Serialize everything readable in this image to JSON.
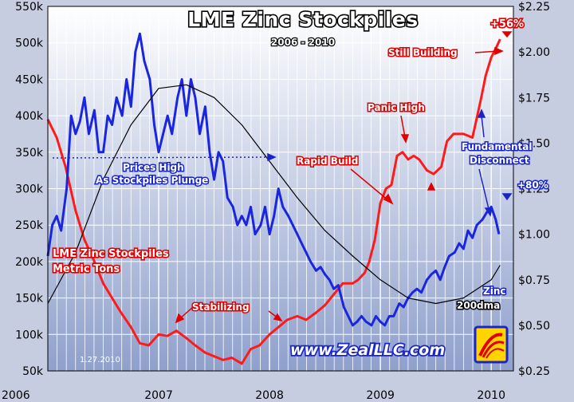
{
  "chart_data": {
    "type": "line",
    "title": "LME Zinc Stockpiles",
    "subtitle": "2006 - 2010",
    "x_ticks": [
      "2006",
      "2007",
      "2008",
      "2009",
      "2010"
    ],
    "y_left_ticks": [
      "50k",
      "100k",
      "150k",
      "200k",
      "250k",
      "300k",
      "350k",
      "400k",
      "450k",
      "500k",
      "550k"
    ],
    "y_right_ticks": [
      "$0.25",
      "$0.50",
      "$0.75",
      "$1.00",
      "$1.25",
      "$1.50",
      "$1.75",
      "$2.00",
      "$2.25"
    ],
    "y_left_range": [
      50000,
      550000
    ],
    "y_right_range": [
      0.25,
      2.25
    ],
    "x_range": [
      2006.0,
      2010.2
    ],
    "grid": true,
    "series": [
      {
        "name": "LME Zinc Stockpiles Metric Tons",
        "axis": "left",
        "color": "#ff1a1a",
        "x": [
          2006.0,
          2006.08,
          2006.16,
          2006.25,
          2006.33,
          2006.42,
          2006.5,
          2006.58,
          2006.66,
          2006.75,
          2006.83,
          2006.91,
          2007.0,
          2007.08,
          2007.16,
          2007.25,
          2007.33,
          2007.42,
          2007.5,
          2007.58,
          2007.66,
          2007.75,
          2007.83,
          2007.91,
          2008.0,
          2008.08,
          2008.16,
          2008.25,
          2008.33,
          2008.42,
          2008.5,
          2008.58,
          2008.66,
          2008.75,
          2008.8,
          2008.86,
          2008.9,
          2008.95,
          2009.0,
          2009.05,
          2009.1,
          2009.15,
          2009.2,
          2009.25,
          2009.3,
          2009.35,
          2009.42,
          2009.48,
          2009.55,
          2009.6,
          2009.66,
          2009.75,
          2009.83,
          2009.86,
          2009.91,
          2009.95,
          2010.0,
          2010.05,
          2010.08
        ],
        "values": [
          395000,
          370000,
          330000,
          270000,
          230000,
          200000,
          170000,
          150000,
          130000,
          110000,
          88000,
          85000,
          100000,
          98000,
          105000,
          95000,
          85000,
          75000,
          70000,
          65000,
          68000,
          60000,
          80000,
          85000,
          100000,
          110000,
          120000,
          125000,
          120000,
          130000,
          140000,
          155000,
          170000,
          170000,
          175000,
          185000,
          200000,
          230000,
          280000,
          300000,
          305000,
          345000,
          350000,
          340000,
          345000,
          340000,
          325000,
          320000,
          330000,
          365000,
          375000,
          375000,
          370000,
          390000,
          425000,
          455000,
          480000,
          495000,
          505000
        ]
      },
      {
        "name": "Zinc",
        "axis": "right",
        "color": "#1a25e0",
        "x": [
          2006.0,
          2006.04,
          2006.08,
          2006.12,
          2006.17,
          2006.21,
          2006.25,
          2006.29,
          2006.33,
          2006.37,
          2006.42,
          2006.46,
          2006.5,
          2006.54,
          2006.58,
          2006.62,
          2006.67,
          2006.71,
          2006.75,
          2006.79,
          2006.83,
          2006.87,
          2006.92,
          2006.96,
          2007.0,
          2007.04,
          2007.08,
          2007.12,
          2007.17,
          2007.21,
          2007.25,
          2007.29,
          2007.33,
          2007.37,
          2007.42,
          2007.46,
          2007.5,
          2007.54,
          2007.58,
          2007.62,
          2007.67,
          2007.71,
          2007.75,
          2007.79,
          2007.83,
          2007.87,
          2007.92,
          2007.96,
          2008.0,
          2008.04,
          2008.08,
          2008.12,
          2008.17,
          2008.21,
          2008.25,
          2008.29,
          2008.33,
          2008.37,
          2008.42,
          2008.46,
          2008.5,
          2008.54,
          2008.58,
          2008.62,
          2008.67,
          2008.71,
          2008.75,
          2008.79,
          2008.83,
          2008.87,
          2008.92,
          2008.96,
          2009.0,
          2009.04,
          2009.08,
          2009.12,
          2009.17,
          2009.21,
          2009.25,
          2009.29,
          2009.33,
          2009.37,
          2009.42,
          2009.46,
          2009.5,
          2009.54,
          2009.58,
          2009.62,
          2009.67,
          2009.71,
          2009.75,
          2009.79,
          2009.83,
          2009.87,
          2009.92,
          2009.96,
          2010.0,
          2010.04,
          2010.07
        ],
        "values": [
          0.88,
          1.05,
          1.1,
          1.02,
          1.25,
          1.65,
          1.55,
          1.62,
          1.75,
          1.55,
          1.68,
          1.45,
          1.45,
          1.65,
          1.6,
          1.75,
          1.65,
          1.85,
          1.7,
          2.0,
          2.1,
          1.95,
          1.85,
          1.6,
          1.45,
          1.55,
          1.65,
          1.55,
          1.75,
          1.85,
          1.65,
          1.85,
          1.75,
          1.55,
          1.7,
          1.45,
          1.3,
          1.45,
          1.4,
          1.2,
          1.15,
          1.05,
          1.1,
          1.05,
          1.15,
          1.0,
          1.05,
          1.15,
          1.0,
          1.1,
          1.25,
          1.15,
          1.1,
          1.05,
          1.0,
          0.95,
          0.9,
          0.85,
          0.8,
          0.82,
          0.78,
          0.75,
          0.7,
          0.72,
          0.6,
          0.55,
          0.5,
          0.52,
          0.55,
          0.52,
          0.5,
          0.55,
          0.52,
          0.5,
          0.55,
          0.55,
          0.62,
          0.6,
          0.65,
          0.68,
          0.7,
          0.68,
          0.75,
          0.78,
          0.8,
          0.75,
          0.82,
          0.88,
          0.9,
          0.95,
          0.92,
          1.02,
          0.98,
          1.05,
          1.08,
          1.12,
          1.15,
          1.08,
          1.0
        ]
      },
      {
        "name": "200dma",
        "axis": "right",
        "color": "#000000",
        "x": [
          2006.0,
          2006.25,
          2006.5,
          2006.75,
          2007.0,
          2007.25,
          2007.5,
          2007.75,
          2008.0,
          2008.25,
          2008.5,
          2008.75,
          2009.0,
          2009.25,
          2009.5,
          2009.75,
          2010.0,
          2010.08
        ],
        "values": [
          0.62,
          0.9,
          1.3,
          1.6,
          1.8,
          1.82,
          1.75,
          1.6,
          1.4,
          1.2,
          1.02,
          0.88,
          0.75,
          0.65,
          0.62,
          0.65,
          0.75,
          0.83
        ]
      }
    ],
    "annotations": [
      {
        "text": "+56%",
        "style": "red"
      },
      {
        "text": "Still Building",
        "style": "red"
      },
      {
        "text": "Panic High",
        "style": "red"
      },
      {
        "text": "Rapid Build",
        "style": "red"
      },
      {
        "text": "Stabilizing",
        "style": "red"
      },
      {
        "text": "LME Zinc Stockpiles",
        "style": "red"
      },
      {
        "text": "Metric Tons",
        "style": "red"
      },
      {
        "text": "Prices High",
        "style": "blue"
      },
      {
        "text": "As Stockpiles Plunge",
        "style": "blue"
      },
      {
        "text": "Fundamental",
        "style": "blue"
      },
      {
        "text": "Disconnect",
        "style": "blue"
      },
      {
        "text": "+80%",
        "style": "blue"
      },
      {
        "text": "Zinc",
        "style": "blue"
      },
      {
        "text": "200dma",
        "style": "black"
      },
      {
        "text": "www.ZealLLC.com",
        "style": "site"
      },
      {
        "text": "1.27.2010",
        "style": "date"
      }
    ]
  },
  "colors": {
    "plot_top": "#ffffff",
    "plot_bottom": "#8fa0cc",
    "frame": "#c6cde0",
    "stockpile_line": "#ff1a1a",
    "zinc_line": "#1a25e0",
    "dma_line": "#000000"
  },
  "logo_icon": "zeal-logo-icon"
}
